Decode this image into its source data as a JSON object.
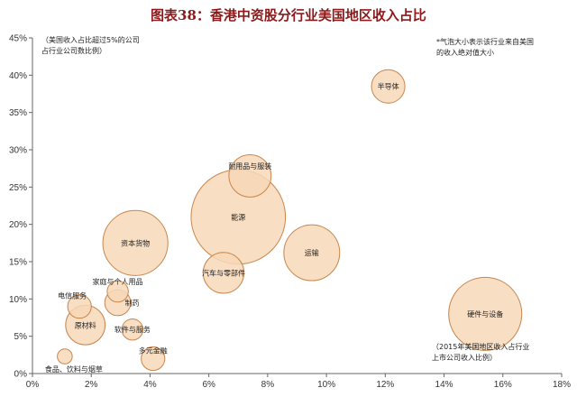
{
  "title": "图表38：香港中资股分行业美国地区收入占比",
  "chart_data": {
    "type": "scatter",
    "title": "图表38：香港中资股分行业美国地区收入占比",
    "xlabel": "",
    "ylabel": "",
    "xlim": [
      0,
      18
    ],
    "ylim": [
      0,
      45
    ],
    "x_ticks": [
      "0%",
      "2%",
      "4%",
      "6%",
      "8%",
      "10%",
      "12%",
      "14%",
      "16%",
      "18%"
    ],
    "y_ticks": [
      "0%",
      "5%",
      "10%",
      "15%",
      "20%",
      "25%",
      "30%",
      "35%",
      "40%",
      "45%"
    ],
    "grid": false,
    "bubble_color": "#F7D8B8",
    "bubble_edge": "#C8864E",
    "annotations": [
      "（美国收入占比超过5%的公司\n占行业公司数比例）",
      "*气泡大小表示该行业来自美国\n的收入绝对值大小",
      "（2015年美国地区收入占行业\n上市公司收入比例）"
    ],
    "points": [
      {
        "label": "半导体",
        "x": 12.1,
        "y": 38.5,
        "size": 1.0
      },
      {
        "label": "耐用品与服装",
        "x": 7.4,
        "y": 26.5,
        "size": 1.6
      },
      {
        "label": "能源",
        "x": 7.0,
        "y": 21.0,
        "size": 8.0
      },
      {
        "label": "资本货物",
        "x": 3.5,
        "y": 17.5,
        "size": 3.8
      },
      {
        "label": "运输",
        "x": 9.5,
        "y": 16.2,
        "size": 2.8
      },
      {
        "label": "汽车与零部件",
        "x": 6.5,
        "y": 13.5,
        "size": 1.5
      },
      {
        "label": "硬件与设备",
        "x": 15.4,
        "y": 8.0,
        "size": 4.8
      },
      {
        "label": "家庭与个人用品",
        "x": 2.9,
        "y": 11.0,
        "size": 0.4
      },
      {
        "label": "电信服务",
        "x": 1.6,
        "y": 9.0,
        "size": 0.5
      },
      {
        "label": "制药",
        "x": 2.9,
        "y": 9.5,
        "size": 0.6
      },
      {
        "label": "原材料",
        "x": 1.8,
        "y": 6.5,
        "size": 1.4
      },
      {
        "label": "软件与服务",
        "x": 3.4,
        "y": 5.9,
        "size": 0.4
      },
      {
        "label": "多元金融",
        "x": 4.1,
        "y": 2.0,
        "size": 0.5
      },
      {
        "label": "食品、饮料与烟草",
        "x": 1.1,
        "y": 2.3,
        "size": 0.2
      }
    ]
  }
}
